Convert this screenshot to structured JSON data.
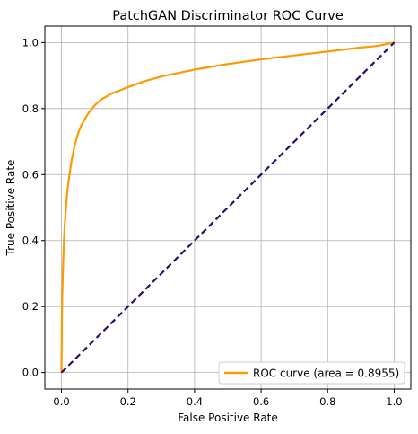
{
  "chart_data": {
    "type": "line",
    "title": "PatchGAN Discriminator ROC Curve",
    "xlabel": "False Positive Rate",
    "ylabel": "True Positive Rate",
    "xlim": [
      -0.05,
      1.05
    ],
    "ylim": [
      -0.05,
      1.05
    ],
    "xticks": [
      0.0,
      0.2,
      0.4,
      0.6,
      0.8,
      1.0
    ],
    "yticks": [
      0.0,
      0.2,
      0.4,
      0.6,
      0.8,
      1.0
    ],
    "xtick_labels": [
      "0.0",
      "0.2",
      "0.4",
      "0.6",
      "0.8",
      "1.0"
    ],
    "ytick_labels": [
      "0.0",
      "0.2",
      "0.4",
      "0.6",
      "0.8",
      "1.0"
    ],
    "grid": true,
    "legend_position": "lower-right",
    "series": [
      {
        "name": "ROC curve (area = 0.8955)",
        "color": "#ff9900",
        "style": "solid",
        "x": [
          0.0,
          0.001,
          0.002,
          0.004,
          0.006,
          0.008,
          0.01,
          0.015,
          0.02,
          0.03,
          0.04,
          0.05,
          0.06,
          0.08,
          0.1,
          0.12,
          0.15,
          0.2,
          0.25,
          0.3,
          0.4,
          0.5,
          0.6,
          0.7,
          0.8,
          0.9,
          0.95,
          1.0
        ],
        "y": [
          0.0,
          0.15,
          0.22,
          0.3,
          0.36,
          0.41,
          0.45,
          0.52,
          0.57,
          0.64,
          0.69,
          0.725,
          0.75,
          0.785,
          0.81,
          0.828,
          0.845,
          0.865,
          0.883,
          0.897,
          0.918,
          0.935,
          0.949,
          0.961,
          0.973,
          0.985,
          0.99,
          1.0
        ]
      },
      {
        "name": "",
        "color": "#2e0b6e",
        "style": "dashed",
        "x": [
          0.0,
          1.0
        ],
        "y": [
          0.0,
          1.0
        ]
      }
    ]
  }
}
